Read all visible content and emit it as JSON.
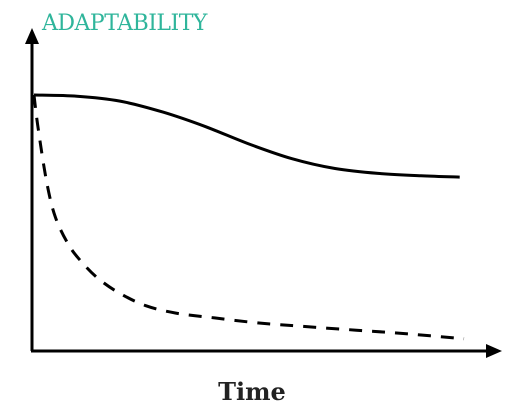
{
  "chart_data": {
    "type": "line",
    "xlabel": "Time",
    "ylabel": "ADAPTABILITY",
    "xlim": [
      0,
      100
    ],
    "ylim": [
      0,
      100
    ],
    "grid": false,
    "series": [
      {
        "style": "solid",
        "x": [
          0,
          10,
          20,
          30,
          40,
          50,
          60,
          70,
          80,
          90,
          99
        ],
        "y": [
          100,
          99.5,
          97.5,
          93,
          87,
          80,
          74,
          70,
          68,
          67,
          66.5
        ]
      },
      {
        "style": "dashed",
        "x": [
          0,
          1,
          3,
          5,
          8,
          11,
          15,
          20,
          26,
          33,
          42,
          52,
          63,
          75,
          87,
          100
        ],
        "y": [
          100,
          86,
          64,
          50,
          39,
          32,
          25,
          19,
          14,
          11,
          9,
          7,
          5.5,
          4,
          2.5,
          0.5
        ]
      }
    ],
    "colors": {
      "ylabel": "#2fb59b",
      "axes": "#000000",
      "lines": "#000000"
    }
  }
}
